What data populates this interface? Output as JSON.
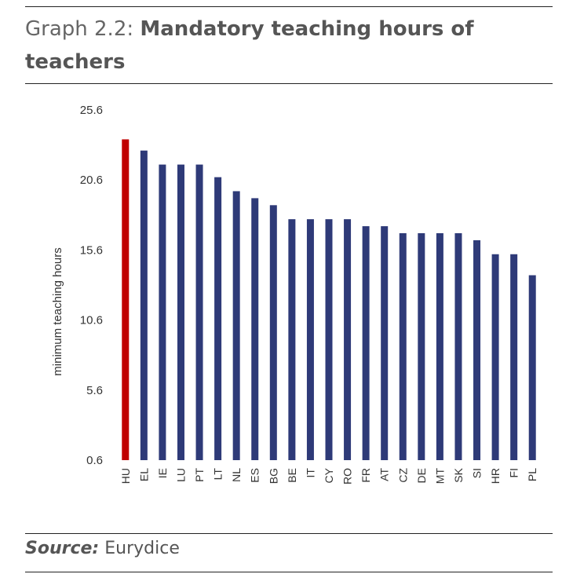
{
  "title": {
    "prefix": "Graph 2.2:",
    "main": "Mandatory teaching hours of teachers"
  },
  "source": {
    "label": "Source:",
    "value": "Eurydice"
  },
  "colors": {
    "highlight": "#c00000",
    "bar": "#2e3a78",
    "text": "#333333"
  },
  "chart_data": {
    "type": "bar",
    "ylabel": "minimum teaching hours",
    "xlabel": "",
    "ylim": [
      0.6,
      25.6
    ],
    "yticks": [
      "25.6",
      "20.6",
      "15.6",
      "10.6",
      "5.6",
      "0.6"
    ],
    "categories": [
      "HU",
      "EL",
      "IE",
      "LU",
      "PT",
      "LT",
      "NL",
      "ES",
      "BG",
      "BE",
      "IT",
      "CY",
      "RO",
      "FR",
      "AT",
      "CZ",
      "DE",
      "MT",
      "SK",
      "SI",
      "HR",
      "FI",
      "PL"
    ],
    "values": [
      23.5,
      22.7,
      21.7,
      21.7,
      21.7,
      20.8,
      19.8,
      19.3,
      18.8,
      17.8,
      17.8,
      17.8,
      17.8,
      17.3,
      17.3,
      16.8,
      16.8,
      16.8,
      16.8,
      16.3,
      15.3,
      15.3,
      13.8
    ],
    "highlight": "HU",
    "grid": false,
    "legend": "none"
  }
}
